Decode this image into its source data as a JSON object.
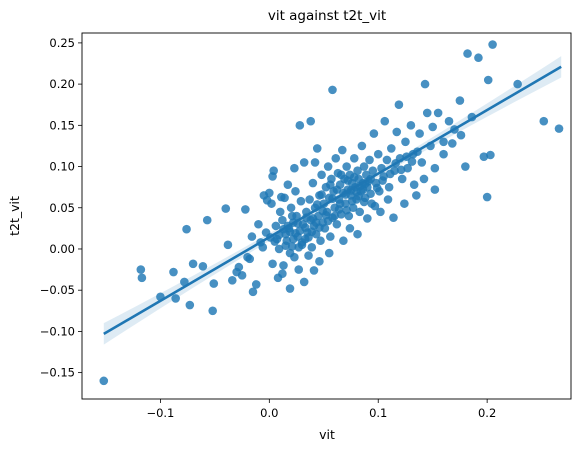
{
  "chart_data": {
    "type": "scatter",
    "title": "vit against t2t_vit",
    "xlabel": "vit",
    "ylabel": "t2t_vit",
    "xlim": [
      -0.172,
      0.277
    ],
    "ylim": [
      -0.182,
      0.262
    ],
    "xticks": [
      -0.1,
      0.0,
      0.1,
      0.2
    ],
    "xtick_labels": [
      "−0.1",
      "0.0",
      "0.1",
      "0.2"
    ],
    "yticks": [
      -0.15,
      -0.1,
      -0.05,
      0.0,
      0.05,
      0.1,
      0.15,
      0.2,
      0.25
    ],
    "ytick_labels": [
      "−0.15",
      "−0.10",
      "−0.05",
      "0.00",
      "0.05",
      "0.10",
      "0.15",
      "0.20",
      "0.25"
    ],
    "grid": false,
    "colors": {
      "points": "#1f77b4",
      "line": "#1f77b4",
      "band": "#1f77b4"
    },
    "regression": {
      "x": [
        -0.152,
        0.268
      ],
      "y": [
        -0.103,
        0.221
      ],
      "ci_halfwidth_ends": 0.013,
      "ci_halfwidth_center": 0.004
    },
    "points": [
      [
        -0.152,
        -0.16
      ],
      [
        -0.118,
        -0.025
      ],
      [
        -0.117,
        -0.035
      ],
      [
        -0.1,
        -0.058
      ],
      [
        -0.088,
        -0.028
      ],
      [
        -0.086,
        -0.06
      ],
      [
        -0.078,
        -0.04
      ],
      [
        -0.076,
        0.024
      ],
      [
        -0.073,
        -0.068
      ],
      [
        -0.07,
        -0.018
      ],
      [
        -0.061,
        -0.021
      ],
      [
        -0.057,
        0.035
      ],
      [
        -0.052,
        -0.075
      ],
      [
        -0.051,
        -0.042
      ],
      [
        -0.04,
        0.049
      ],
      [
        -0.038,
        0.005
      ],
      [
        -0.03,
        -0.028
      ],
      [
        -0.025,
        -0.032
      ],
      [
        -0.02,
        -0.01
      ],
      [
        -0.018,
        -0.012
      ],
      [
        -0.016,
        0.015
      ],
      [
        -0.015,
        -0.052
      ],
      [
        -0.012,
        -0.043
      ],
      [
        -0.008,
        0.008
      ],
      [
        -0.005,
        0.065
      ],
      [
        -0.003,
        0.02
      ],
      [
        0.0,
        0.068
      ],
      [
        0.002,
        0.055
      ],
      [
        0.003,
        0.088
      ],
      [
        0.004,
        0.095
      ],
      [
        0.006,
        0.028
      ],
      [
        0.007,
        0.012
      ],
      [
        0.008,
        -0.035
      ],
      [
        0.009,
        0.0
      ],
      [
        0.01,
        0.045
      ],
      [
        0.012,
        0.035
      ],
      [
        0.013,
        -0.02
      ],
      [
        0.014,
        0.062
      ],
      [
        0.015,
        0.018
      ],
      [
        0.016,
        0.01
      ],
      [
        0.018,
        0.025
      ],
      [
        0.019,
        -0.005
      ],
      [
        0.02,
        0.05
      ],
      [
        0.021,
        0.003
      ],
      [
        0.022,
        0.032
      ],
      [
        0.023,
        -0.01
      ],
      [
        0.024,
        0.07
      ],
      [
        0.025,
        0.04
      ],
      [
        0.026,
        0.015
      ],
      [
        0.027,
        -0.025
      ],
      [
        0.028,
        0.022
      ],
      [
        0.029,
        0.058
      ],
      [
        0.03,
        0.005
      ],
      [
        0.031,
        0.03
      ],
      [
        0.032,
        0.105
      ],
      [
        0.033,
        0.012
      ],
      [
        0.034,
        0.045
      ],
      [
        0.035,
        0.02
      ],
      [
        0.036,
        -0.008
      ],
      [
        0.037,
        0.06
      ],
      [
        0.038,
        0.035
      ],
      [
        0.039,
        0.002
      ],
      [
        0.04,
        0.08
      ],
      [
        0.041,
        0.028
      ],
      [
        0.042,
        0.05
      ],
      [
        0.043,
        0.018
      ],
      [
        0.044,
        0.122
      ],
      [
        0.045,
        0.04
      ],
      [
        0.046,
        0.065
      ],
      [
        0.047,
        0.01
      ],
      [
        0.048,
        0.09
      ],
      [
        0.049,
        0.032
      ],
      [
        0.05,
        0.055
      ],
      [
        0.051,
        0.025
      ],
      [
        0.052,
        0.075
      ],
      [
        0.053,
        0.045
      ],
      [
        0.054,
        0.1
      ],
      [
        0.055,
        0.062
      ],
      [
        0.056,
        0.015
      ],
      [
        0.057,
        0.085
      ],
      [
        0.058,
        0.038
      ],
      [
        0.059,
        0.07
      ],
      [
        0.06,
        0.05
      ],
      [
        0.061,
        0.11
      ],
      [
        0.062,
        0.03
      ],
      [
        0.063,
        0.092
      ],
      [
        0.064,
        0.06
      ],
      [
        0.065,
        0.078
      ],
      [
        0.066,
        0.042
      ],
      [
        0.067,
        0.12
      ],
      [
        0.068,
        0.068
      ],
      [
        0.069,
        0.085
      ],
      [
        0.07,
        0.055
      ],
      [
        0.071,
        0.1
      ],
      [
        0.072,
        0.072
      ],
      [
        0.073,
        0.04
      ],
      [
        0.074,
        0.09
      ],
      [
        0.075,
        0.065
      ],
      [
        0.076,
        0.08
      ],
      [
        0.077,
        0.05
      ],
      [
        0.078,
        0.11
      ],
      [
        0.079,
        0.075
      ],
      [
        0.08,
        0.06
      ],
      [
        0.081,
        0.095
      ],
      [
        0.082,
        0.085
      ],
      [
        0.083,
        0.045
      ],
      [
        0.084,
        0.07
      ],
      [
        0.085,
        0.125
      ],
      [
        0.086,
        0.08
      ],
      [
        0.087,
        0.1
      ],
      [
        0.088,
        0.062
      ],
      [
        0.089,
        0.09
      ],
      [
        0.09,
        0.075
      ],
      [
        0.092,
        0.108
      ],
      [
        0.093,
        0.085
      ],
      [
        0.094,
        0.055
      ],
      [
        0.095,
        0.095
      ],
      [
        0.096,
        0.14
      ],
      [
        0.098,
        0.08
      ],
      [
        0.1,
        0.115
      ],
      [
        0.101,
        0.07
      ],
      [
        0.103,
        0.098
      ],
      [
        0.105,
        0.088
      ],
      [
        0.106,
        0.155
      ],
      [
        0.108,
        0.108
      ],
      [
        0.11,
        0.075
      ],
      [
        0.112,
        0.122
      ],
      [
        0.115,
        0.095
      ],
      [
        0.117,
        0.142
      ],
      [
        0.119,
        0.175
      ],
      [
        0.12,
        0.11
      ],
      [
        0.122,
        0.085
      ],
      [
        0.125,
        0.13
      ],
      [
        0.127,
        0.098
      ],
      [
        0.13,
        0.15
      ],
      [
        0.132,
        0.115
      ],
      [
        0.135,
        0.065
      ],
      [
        0.138,
        0.14
      ],
      [
        0.14,
        0.105
      ],
      [
        0.143,
        0.2
      ],
      [
        0.145,
        0.165
      ],
      [
        0.148,
        0.125
      ],
      [
        0.15,
        0.148
      ],
      [
        0.152,
        0.098
      ],
      [
        0.155,
        0.165
      ],
      [
        0.16,
        0.13
      ],
      [
        0.165,
        0.155
      ],
      [
        0.17,
        0.145
      ],
      [
        0.175,
        0.18
      ],
      [
        0.18,
        0.1
      ],
      [
        0.182,
        0.237
      ],
      [
        0.192,
        0.232
      ],
      [
        0.197,
        0.112
      ],
      [
        0.2,
        0.063
      ],
      [
        0.201,
        0.205
      ],
      [
        0.203,
        0.114
      ],
      [
        0.205,
        0.248
      ],
      [
        0.228,
        0.2
      ],
      [
        0.252,
        0.155
      ],
      [
        0.266,
        0.146
      ],
      [
        0.058,
        0.193
      ],
      [
        0.038,
        0.155
      ],
      [
        0.028,
        0.15
      ],
      [
        0.011,
        0.063
      ],
      [
        -0.002,
        0.059
      ],
      [
        0.021,
        0.04
      ],
      [
        0.017,
        0.028
      ],
      [
        0.024,
        0.019
      ],
      [
        0.03,
        0.008
      ],
      [
        0.036,
        0.014
      ],
      [
        0.04,
        0.037
      ],
      [
        0.046,
        0.026
      ],
      [
        0.052,
        0.041
      ],
      [
        0.058,
        0.061
      ],
      [
        0.064,
        0.048
      ],
      [
        0.07,
        0.066
      ],
      [
        0.075,
        0.071
      ],
      [
        0.08,
        0.069
      ],
      [
        0.086,
        0.072
      ],
      [
        0.091,
        0.082
      ],
      [
        0.056,
        0.078
      ],
      [
        0.062,
        0.072
      ],
      [
        0.066,
        0.09
      ],
      [
        0.072,
        0.083
      ],
      [
        0.078,
        0.087
      ],
      [
        0.083,
        0.076
      ],
      [
        0.088,
        0.079
      ],
      [
        0.044,
        0.054
      ],
      [
        0.048,
        0.066
      ],
      [
        0.034,
        0.038
      ],
      [
        0.026,
        0.031
      ],
      [
        0.019,
        0.021
      ],
      [
        0.013,
        0.024
      ],
      [
        0.009,
        0.017
      ],
      [
        0.005,
        0.009
      ],
      [
        0.001,
        0.014
      ],
      [
        0.015,
        0.004
      ],
      [
        0.022,
        0.012
      ],
      [
        0.027,
        0.002
      ],
      [
        0.033,
        0.026
      ],
      [
        0.039,
        0.021
      ],
      [
        0.043,
        0.032
      ],
      [
        0.049,
        0.046
      ],
      [
        0.054,
        0.034
      ],
      [
        0.06,
        0.04
      ],
      [
        0.065,
        0.055
      ],
      [
        0.071,
        0.047
      ],
      [
        0.076,
        0.058
      ],
      [
        0.082,
        0.064
      ],
      [
        0.087,
        0.057
      ],
      [
        0.093,
        0.067
      ],
      [
        0.099,
        0.074
      ],
      [
        0.104,
        0.083
      ],
      [
        0.111,
        0.091
      ],
      [
        0.116,
        0.104
      ],
      [
        0.121,
        0.096
      ],
      [
        0.126,
        0.112
      ],
      [
        0.131,
        0.106
      ],
      [
        0.136,
        0.118
      ],
      [
        0.046,
        -0.015
      ],
      [
        0.032,
        -0.04
      ],
      [
        0.019,
        -0.048
      ],
      [
        0.041,
        -0.026
      ],
      [
        0.055,
        -0.005
      ],
      [
        0.068,
        0.01
      ],
      [
        0.074,
        0.025
      ],
      [
        0.081,
        0.018
      ],
      [
        0.09,
        0.037
      ],
      [
        0.097,
        0.052
      ],
      [
        0.102,
        0.045
      ],
      [
        0.109,
        0.06
      ],
      [
        0.114,
        0.038
      ],
      [
        0.124,
        0.055
      ],
      [
        0.133,
        0.078
      ],
      [
        0.142,
        0.085
      ],
      [
        0.152,
        0.072
      ],
      [
        0.16,
        0.115
      ],
      [
        0.168,
        0.128
      ],
      [
        0.176,
        0.138
      ],
      [
        0.186,
        0.16
      ],
      [
        0.012,
        -0.03
      ],
      [
        0.003,
        -0.018
      ],
      [
        -0.006,
        0.002
      ],
      [
        -0.01,
        0.03
      ],
      [
        -0.022,
        0.048
      ],
      [
        -0.028,
        -0.022
      ],
      [
        -0.034,
        -0.038
      ],
      [
        0.017,
        0.078
      ],
      [
        0.023,
        0.098
      ],
      [
        0.042,
        0.105
      ]
    ]
  }
}
